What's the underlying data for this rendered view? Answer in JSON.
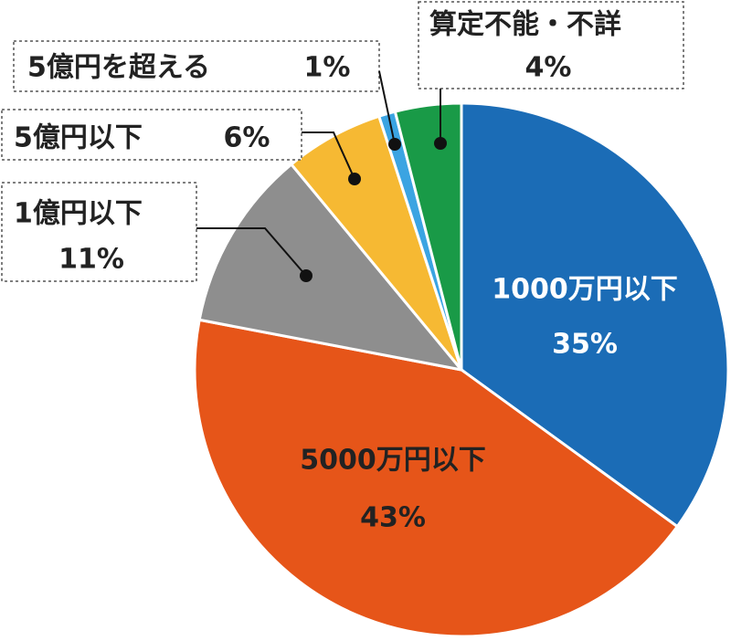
{
  "chart_data": {
    "type": "pie",
    "categories": [
      "1000万円以下",
      "5000万円以下",
      "1億円以下",
      "5億円以下",
      "5億円を超える",
      "算定不能・不詳"
    ],
    "values": [
      35,
      43,
      11,
      6,
      1,
      4
    ],
    "value_labels": [
      "35%",
      "43%",
      "11%",
      "6%",
      "1%",
      "4%"
    ],
    "colors": [
      "#1b6cb6",
      "#e65519",
      "#8e8e8e",
      "#f6b933",
      "#3ba4e2",
      "#199a47"
    ]
  }
}
